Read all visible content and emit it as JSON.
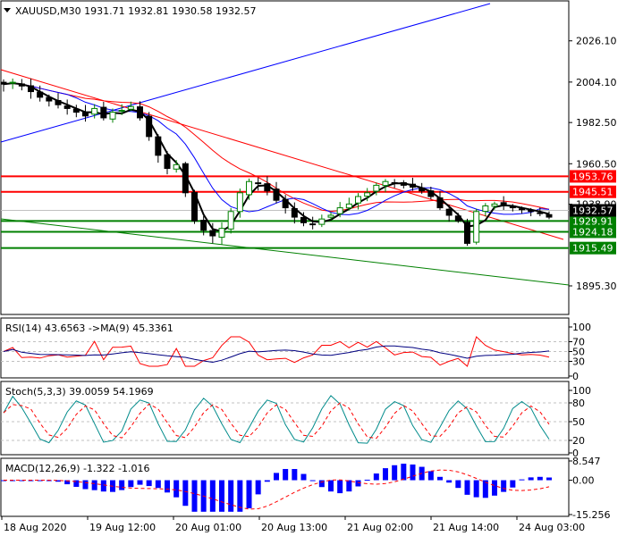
{
  "chart_data": {
    "type": "candlestick",
    "symbol_header": "XAUUSD,M30  1931.71 1932.81 1930.58 1932.57",
    "x_ticks": [
      "18 Aug 2020",
      "19 Aug 12:00",
      "20 Aug 01:00",
      "20 Aug 13:00",
      "21 Aug 02:00",
      "21 Aug 14:00",
      "24 Aug 03:00"
    ],
    "price_axis": {
      "ticks": [
        "2026.10",
        "2004.10",
        "1982.50",
        "1960.50",
        "1938.90",
        "1895.30"
      ],
      "ylim": [
        1881,
        2046
      ]
    },
    "current_price_label": "1932.57",
    "levels": [
      {
        "label": "1953.76",
        "value": 1953.76,
        "color": "#ff0000"
      },
      {
        "label": "1945.51",
        "value": 1945.51,
        "color": "#ff0000"
      },
      {
        "label": "1929.91",
        "value": 1929.91,
        "color": "#008000"
      },
      {
        "label": "1924.18",
        "value": 1924.18,
        "color": "#008000"
      },
      {
        "label": "1915.49",
        "value": 1915.49,
        "color": "#008000"
      }
    ],
    "price_series": [
      2003,
      2004,
      2002,
      1999,
      1996,
      1994,
      1992,
      1990,
      1988,
      1986,
      1990,
      1985,
      1988,
      1989,
      1991,
      1985,
      1975,
      1965,
      1958,
      1960,
      1945,
      1930,
      1925,
      1922,
      1926,
      1935,
      1945,
      1951,
      1950,
      1946,
      1941,
      1937,
      1932,
      1929,
      1928,
      1931,
      1933,
      1937,
      1939,
      1943,
      1945,
      1949,
      1951,
      1950,
      1949,
      1948,
      1946,
      1943,
      1937,
      1933,
      1930,
      1918,
      1935,
      1938,
      1939,
      1938,
      1937,
      1936,
      1935,
      1934,
      1932
    ],
    "indicators": {
      "rsi": {
        "label": "RSI(14) 43.6563  ->MA(9) 45.3361",
        "ticks": [
          "100",
          "70",
          "50",
          "30",
          "0"
        ],
        "levels": [
          30,
          50,
          70
        ]
      },
      "stoch": {
        "label": "Stoch(5,3,3) 39.0059 54.1969",
        "ticks": [
          "100",
          "80",
          "50",
          "20",
          "0"
        ],
        "levels": [
          20,
          50,
          80
        ]
      },
      "macd": {
        "label": "MACD(12,26,9) -1.322 -1.016",
        "ticks": [
          "8.547",
          "0.00",
          "-15.256"
        ]
      }
    },
    "colors": {
      "background": "#ffffff",
      "up": "#008000",
      "down": "#000000",
      "accent_line": "#0000ff",
      "resistance": "#ff0000",
      "support": "#008000"
    }
  }
}
